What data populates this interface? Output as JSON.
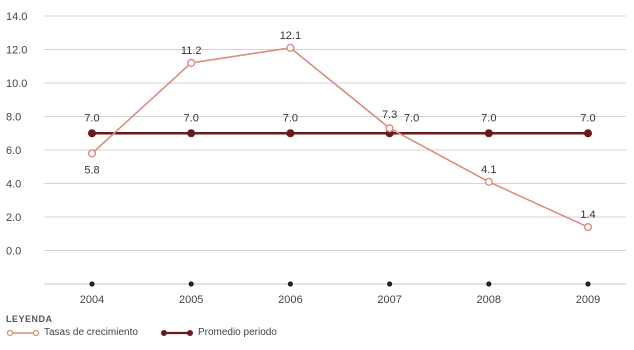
{
  "chart_data": {
    "type": "line",
    "x": [
      "2004",
      "2005",
      "2006",
      "2007",
      "2008",
      "2009"
    ],
    "series": [
      {
        "name": "Tasas de crecimiento",
        "values": [
          5.8,
          11.2,
          12.1,
          7.3,
          4.1,
          1.4
        ],
        "labels": [
          "5.8",
          "11.2",
          "12.1",
          "7.3",
          "4.1",
          "1.4"
        ],
        "color": "#d98e7f"
      },
      {
        "name": "Promedio periodo",
        "values": [
          7.0,
          7.0,
          7.0,
          7.0,
          7.0,
          7.0
        ],
        "labels": [
          "7.0",
          "7.0",
          "7.0",
          "7.0",
          "7.0",
          "7.0"
        ],
        "color": "#6b1a1c"
      }
    ],
    "yticks": [
      "14.0",
      "12.0",
      "10.0",
      "8.0",
      "6.0",
      "4.0",
      "2.0",
      "0.0"
    ],
    "ylim": [
      -2,
      14
    ],
    "grid": true,
    "legend_title": "LEYENDA",
    "legend_position": "bottom-left"
  }
}
